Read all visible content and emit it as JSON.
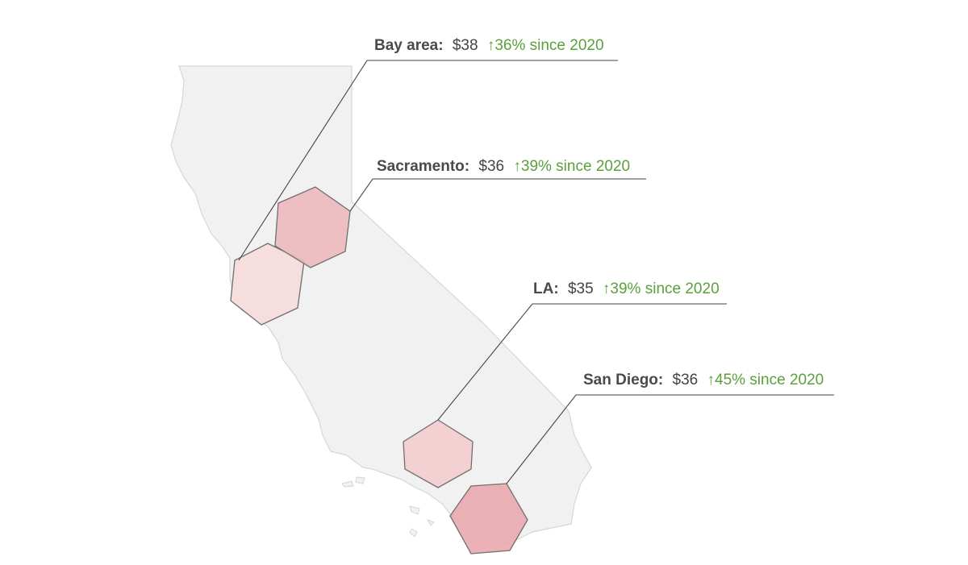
{
  "map": {
    "region": "California",
    "colors": {
      "land": "#f1f1f1",
      "land_stroke": "#d6d6d6",
      "hex_stroke": "#6f6f6f",
      "leader": "#444444",
      "label_name": "#4a4a4a",
      "label_value": "#444444",
      "label_change": "#5aa03c"
    },
    "markers": [
      {
        "id": "bay-area",
        "name": "Bay area:",
        "value": "$38",
        "change": "↑36% since 2020",
        "fill": "#f6dadc"
      },
      {
        "id": "sacramento",
        "name": "Sacramento:",
        "value": "$36",
        "change": "↑39% since 2020",
        "fill": "#edb9bd"
      },
      {
        "id": "la",
        "name": "LA:",
        "value": "$35",
        "change": "↑39% since 2020",
        "fill": "#f3cdcf"
      },
      {
        "id": "san-diego",
        "name": "San Diego:",
        "value": "$36",
        "change": "↑45% since 2020",
        "fill": "#e9a9ae"
      }
    ]
  }
}
